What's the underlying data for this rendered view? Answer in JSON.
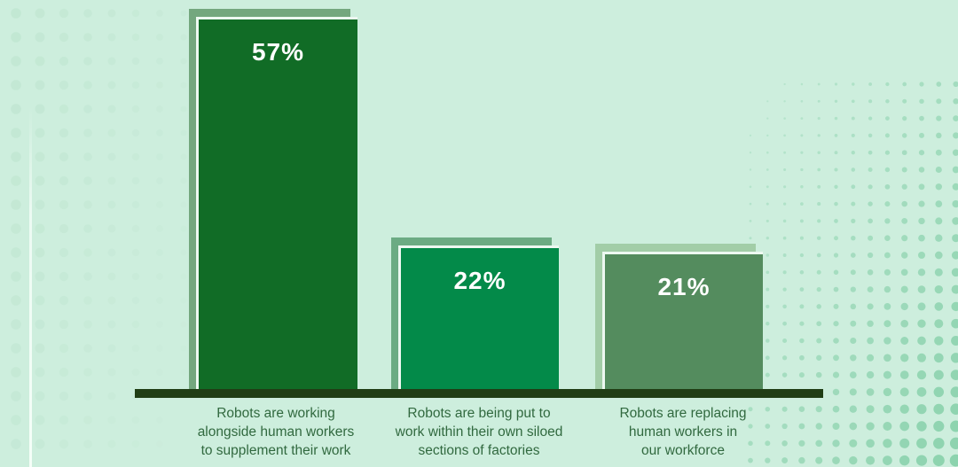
{
  "chart_data": {
    "type": "bar",
    "title": "",
    "xlabel": "",
    "ylabel": "",
    "ylim": [
      0,
      60
    ],
    "grid": false,
    "legend": "none",
    "categories": [
      "Robots are working\nalongside human workers\nto supplement their work",
      "Robots are being put to\nwork within their own siloed\nsections of factories",
      "Robots are replacing\nhuman workers in\nour workforce"
    ],
    "values": [
      57,
      22,
      21
    ],
    "value_labels": [
      "57%",
      "22%",
      "21%"
    ],
    "bar_colors": [
      "#116c26",
      "#038a49",
      "#548c5e"
    ],
    "bar_shadow_colors": [
      "#74a77e",
      "#6cab83",
      "#a2cda7"
    ],
    "bar_border_color": "#edf8f1",
    "value_text_color": "#ffffff",
    "axis_color": "#203e15",
    "category_text_color": "#31693f",
    "background_color": "#cdeedd",
    "dot_color_left": "#c0e6d1",
    "dot_color_right": "#8bd2ad"
  }
}
